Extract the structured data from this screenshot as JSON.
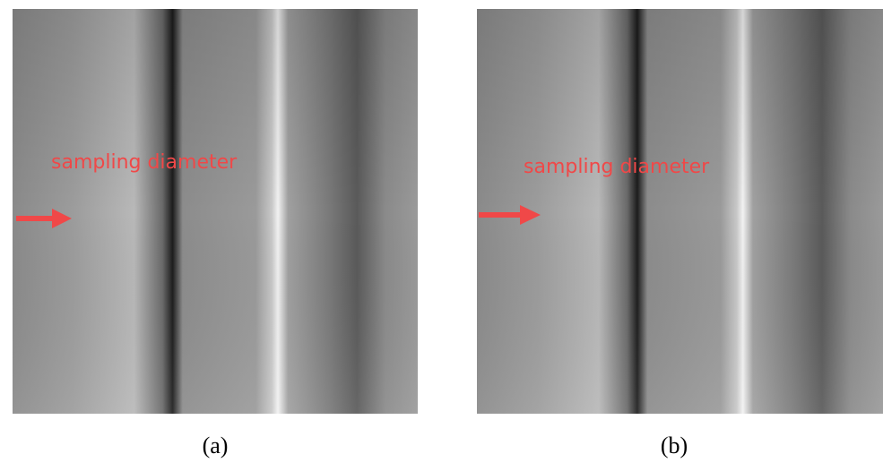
{
  "panels": [
    {
      "annotation": "sampling diameter",
      "caption": "(a)"
    },
    {
      "annotation": "sampling diameter",
      "caption": "(b)"
    }
  ]
}
